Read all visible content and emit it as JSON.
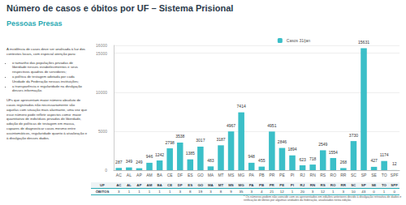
{
  "header": {
    "title": "Número de casos e óbitos por UF – Sistema Prisional",
    "subtitle": "Pessoas Presas"
  },
  "side_text": {
    "intro": "A incidência de casos deve ser analisada à luz dos contextos locais, com especial atenção para:",
    "bullets": [
      "o tamanho das populações privadas de liberdade nesses estabelecimentos e seus respectivos quadros de servidores;",
      "a política de testagem adotada por cada Unidade da Federação nessas instituições;",
      "a transparência e regularidade na divulgação desses informação."
    ],
    "paragraph": "UFs que apresentam maior número absoluto de casos registrados não necessariamente são aquelas com situação mais alarmante, uma vez que esse número pode refletir aspectos como: maior quantitativo de indivíduos privados de liberdade, adoção de políticas de testagem em massa, capazes de diagnosticar casos mesmo entre assintomáticos, regularidade quanto à atualização e à divulgação desses dados."
  },
  "chart_data": {
    "type": "bar",
    "categories": [
      "AC",
      "AL",
      "AP",
      "AM",
      "BA",
      "CE",
      "DF",
      "ES",
      "GO",
      "MA",
      "MT",
      "MS",
      "MG",
      "PA",
      "PB",
      "PR",
      "PE",
      "PI",
      "RJ",
      "RN",
      "RS",
      "RO",
      "RR",
      "SC",
      "SP",
      "SE",
      "TO",
      "SPF"
    ],
    "series": [
      {
        "name": "Casos 31/jan",
        "color": "#3bbfc8",
        "values": [
          287,
          349,
          249,
          946,
          1242,
          2798,
          3538,
          1385,
          3017,
          483,
          3187,
          4967,
          7414,
          948,
          455,
          4951,
          2846,
          1894,
          623,
          718,
          2549,
          1554,
          268,
          3730,
          15631,
          427,
          1174,
          12
        ]
      }
    ],
    "ylim": [
      0,
      16000
    ],
    "yticks": [
      0,
      5000,
      10000,
      15000
    ],
    "grid": true,
    "legend": "top",
    "data_labels": true
  },
  "table": {
    "rows": [
      [
        "UF",
        "AC",
        "AL",
        "AP",
        "AM",
        "BA",
        "CE",
        "DF",
        "ES",
        "GO",
        "MA",
        "MT",
        "MS",
        "MG",
        "PA",
        "PB",
        "PR",
        "PE",
        "PI",
        "RJ",
        "RN",
        "RS",
        "RO",
        "RR",
        "SC",
        "SP",
        "SE",
        "TO",
        "SPF"
      ],
      [
        "ÓBITOS",
        "3",
        "1",
        "1",
        "1",
        "1",
        "1",
        "3",
        "8",
        "19",
        "3",
        "8",
        "9",
        "35",
        "3",
        "4",
        "21",
        "12",
        "1",
        "20",
        "3",
        "12",
        "1",
        "3",
        "10",
        "43",
        "0",
        "1",
        "0"
      ]
    ]
  },
  "footnote": "* Os números podem não coincidir com os apresentados em edições anteriores devido à divulgação retroativa de dados e retificação de óbitos por algumas unidades da federação, atualizados nesta edição."
}
